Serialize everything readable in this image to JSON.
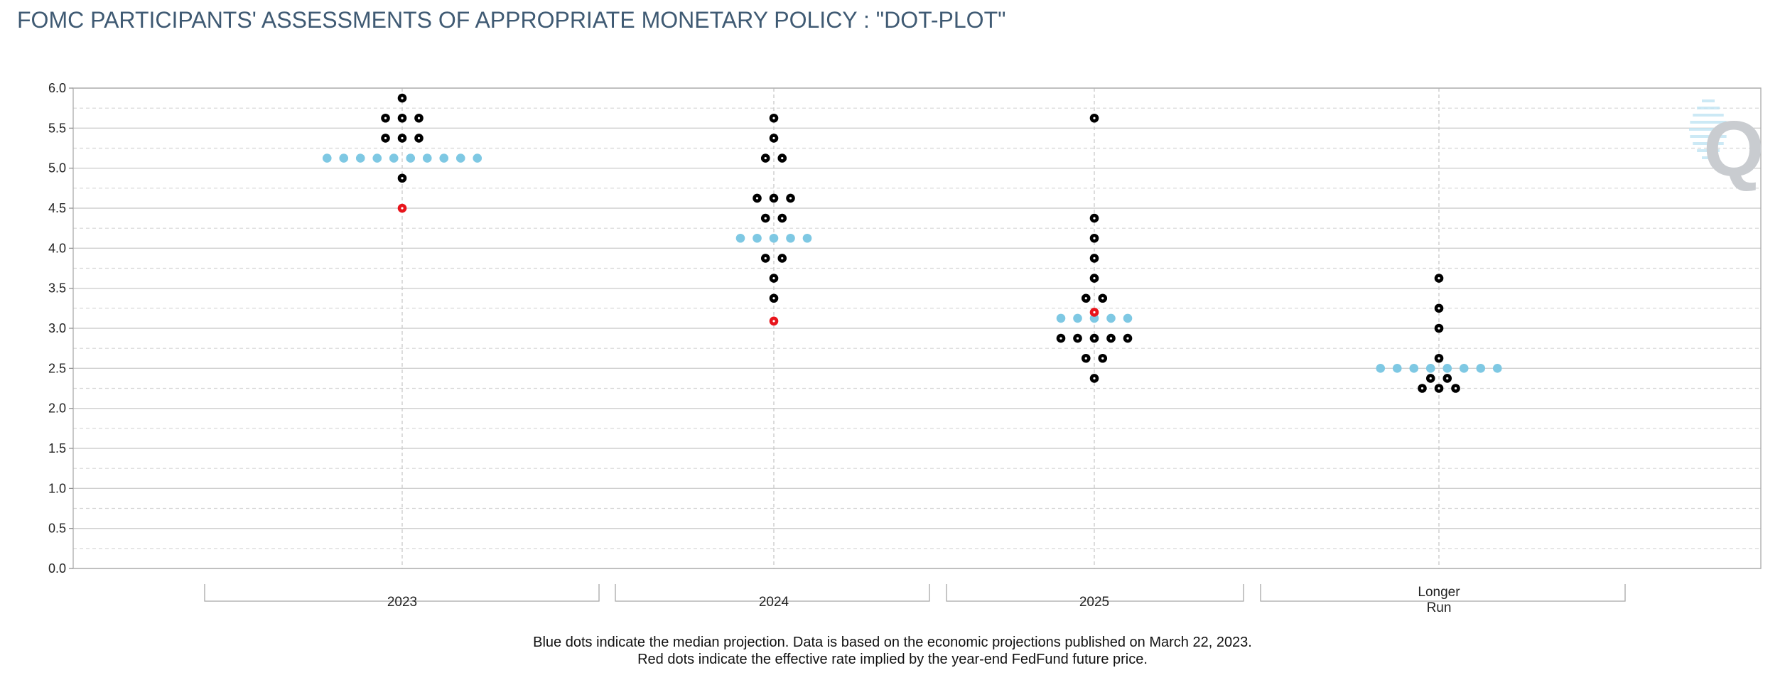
{
  "chart_data": {
    "type": "scatter",
    "title": "FOMC PARTICIPANTS' ASSESSMENTS OF APPROPRIATE MONETARY POLICY : \"DOT-PLOT\"",
    "ylim": [
      0,
      6
    ],
    "yticks": [
      "0.0",
      "0.5",
      "1.0",
      "1.5",
      "2.0",
      "2.5",
      "3.0",
      "3.5",
      "4.0",
      "4.5",
      "5.0",
      "5.5",
      "6.0"
    ],
    "grid": true,
    "categories": [
      "2023",
      "2024",
      "2025",
      "Longer Run"
    ],
    "category_label_lines": [
      [
        "2023"
      ],
      [
        "2024"
      ],
      [
        "2025"
      ],
      [
        "Longer",
        "Run"
      ]
    ],
    "participant_dots": [
      {
        "category": "2023",
        "levels": [
          {
            "rate": 5.875,
            "count": 1
          },
          {
            "rate": 5.625,
            "count": 3
          },
          {
            "rate": 5.375,
            "count": 3
          },
          {
            "rate": 5.125,
            "count": 10
          },
          {
            "rate": 4.875,
            "count": 1
          }
        ]
      },
      {
        "category": "2024",
        "levels": [
          {
            "rate": 5.625,
            "count": 1
          },
          {
            "rate": 5.375,
            "count": 1
          },
          {
            "rate": 5.125,
            "count": 2
          },
          {
            "rate": 4.625,
            "count": 3
          },
          {
            "rate": 4.375,
            "count": 2
          },
          {
            "rate": 4.125,
            "count": 1
          },
          {
            "rate": 3.875,
            "count": 2
          },
          {
            "rate": 3.625,
            "count": 1
          },
          {
            "rate": 3.375,
            "count": 1
          }
        ]
      },
      {
        "category": "2025",
        "levels": [
          {
            "rate": 5.625,
            "count": 1
          },
          {
            "rate": 4.375,
            "count": 1
          },
          {
            "rate": 4.125,
            "count": 1
          },
          {
            "rate": 3.875,
            "count": 1
          },
          {
            "rate": 3.625,
            "count": 1
          },
          {
            "rate": 3.375,
            "count": 2
          },
          {
            "rate": 3.125,
            "count": 1
          },
          {
            "rate": 2.875,
            "count": 5
          },
          {
            "rate": 2.625,
            "count": 2
          },
          {
            "rate": 2.375,
            "count": 1
          }
        ]
      },
      {
        "category": "Longer Run",
        "levels": [
          {
            "rate": 3.625,
            "count": 1
          },
          {
            "rate": 3.25,
            "count": 1
          },
          {
            "rate": 3.0,
            "count": 1
          },
          {
            "rate": 2.625,
            "count": 1
          },
          {
            "rate": 2.5,
            "count": 7
          },
          {
            "rate": 2.375,
            "count": 2
          },
          {
            "rate": 2.25,
            "count": 3
          }
        ]
      }
    ],
    "median_projection": [
      {
        "category": "2023",
        "rate": 5.125,
        "dots": 10
      },
      {
        "category": "2024",
        "rate": 4.125,
        "dots": 5
      },
      {
        "category": "2025",
        "rate": 3.125,
        "dots": 5
      },
      {
        "category": "Longer Run",
        "rate": 2.5,
        "dots": 8
      }
    ],
    "futures_implied": [
      {
        "category": "2023",
        "rate": 4.5
      },
      {
        "category": "2024",
        "rate": 3.09
      },
      {
        "category": "2025",
        "rate": 3.2
      }
    ],
    "colors": {
      "participant": "#000000",
      "median": "#7ec8e3",
      "futures": "#e8141b",
      "grid": "#c8c8c8",
      "axis": "#b0b0b0",
      "title": "#3f5a73",
      "logo": "#c9ccd0"
    },
    "footnote_lines": [
      "Blue dots indicate the median projection. Data is based on the economic projections published on March 22, 2023.",
      "Red dots indicate the effective rate implied by the year-end FedFund future price."
    ],
    "logo_letter": "Q"
  }
}
